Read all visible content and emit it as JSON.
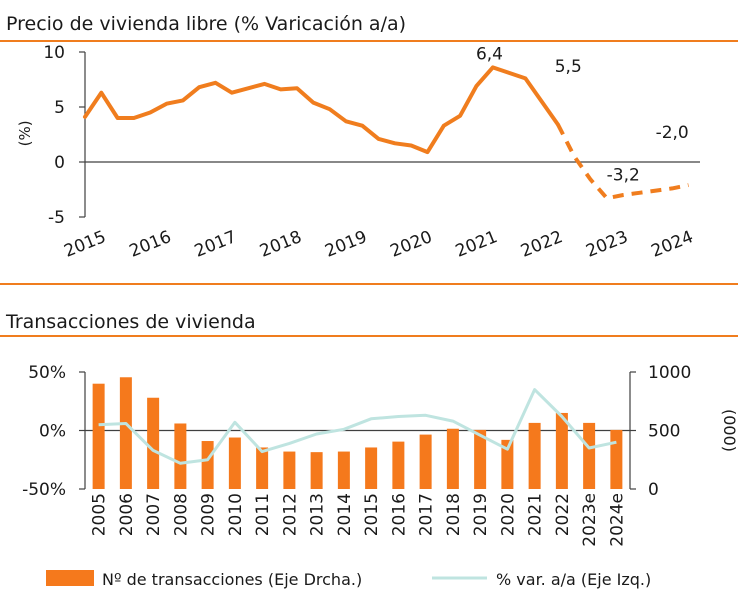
{
  "colors": {
    "accent": "#f07d1e",
    "bars": "#f5791c",
    "pct_line": "#bfe4e0",
    "axis": "#404040",
    "rule": "#f07d1e"
  },
  "chart_data": [
    {
      "type": "line",
      "title": "Precio de vivienda libre (% Varicación a/a)",
      "ylabel": "(%)",
      "ylim": [
        -5,
        10
      ],
      "yticks": [
        "10",
        "5",
        "0",
        "-5"
      ],
      "xticks": [
        "2015",
        "2016",
        "2017",
        "2018",
        "2019",
        "2020",
        "2021",
        "2022",
        "2023",
        "2024"
      ],
      "grid": false,
      "series": [
        {
          "style": "solid",
          "x": [
            2015.0,
            2015.25,
            2015.5,
            2015.75,
            2016.0,
            2016.25,
            2016.5,
            2016.75,
            2017.0,
            2017.25,
            2017.5,
            2017.75,
            2018.0,
            2018.25,
            2018.5,
            2018.75,
            2019.0,
            2019.25,
            2019.5,
            2019.75,
            2020.0,
            2020.25,
            2020.5,
            2020.75,
            2021.0,
            2021.25,
            2021.5,
            2021.75,
            2022.0,
            2022.25
          ],
          "values": [
            4.1,
            6.3,
            4.0,
            4.0,
            4.5,
            5.3,
            5.6,
            6.8,
            7.2,
            6.3,
            6.7,
            7.1,
            6.6,
            6.7,
            5.4,
            4.8,
            3.7,
            3.3,
            2.1,
            1.7,
            1.5,
            0.9,
            3.3,
            4.2,
            6.9,
            8.6,
            8.1,
            7.6,
            5.5,
            3.4
          ]
        },
        {
          "style": "dashed",
          "x": [
            2022.25,
            2022.5,
            2022.75,
            2023.0,
            2023.25,
            2023.5,
            2023.75,
            2024.0,
            2024.25
          ],
          "values": [
            3.4,
            0.5,
            -1.6,
            -3.3,
            -3.0,
            -2.8,
            -2.6,
            -2.4,
            -2.1
          ]
        }
      ],
      "annotations": [
        "6,4",
        "5,5",
        "-3,2",
        "-2,0"
      ]
    },
    {
      "type": "bar",
      "title": "Transacciones de vivienda",
      "ylabel_right": "(000)",
      "ylim_left": [
        -50,
        50
      ],
      "ylim_right": [
        0,
        1000
      ],
      "yticks_left": [
        "50%",
        "0%",
        "-50%"
      ],
      "yticks_right": [
        "1000",
        "500",
        "0"
      ],
      "grid": false,
      "legend": "bottom",
      "categories": [
        "2005",
        "2006",
        "2007",
        "2008",
        "2009",
        "2010",
        "2011",
        "2012",
        "2013",
        "2014",
        "2015",
        "2016",
        "2017",
        "2018",
        "2019",
        "2020",
        "2021",
        "2022",
        "2023e",
        "2024e"
      ],
      "series": [
        {
          "name": "Nº de transacciones (Eje Drcha.)",
          "axis": "right",
          "type": "bar",
          "values": [
            900,
            955,
            780,
            560,
            410,
            440,
            355,
            320,
            315,
            320,
            355,
            405,
            465,
            515,
            505,
            420,
            565,
            650,
            565,
            505
          ]
        },
        {
          "name": "% var. a/a (Eje Izq.)",
          "axis": "left",
          "type": "line",
          "values": [
            5,
            6,
            -17,
            -28,
            -25,
            7,
            -18,
            -11,
            -3,
            1,
            10,
            12,
            13,
            8,
            -4,
            -16,
            35,
            12,
            -15,
            -10
          ]
        }
      ]
    }
  ]
}
